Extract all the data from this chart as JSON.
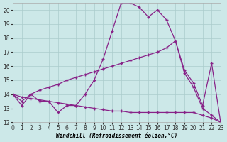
{
  "background_color": "#cce8e8",
  "grid_color": "#aacccc",
  "line_color": "#882288",
  "xlabel": "Windchill (Refroidissement éolien,°C)",
  "xlim": [
    0,
    23
  ],
  "ylim": [
    12,
    20.5
  ],
  "yticks": [
    12,
    13,
    14,
    15,
    16,
    17,
    18,
    19,
    20
  ],
  "xticks": [
    0,
    1,
    2,
    3,
    4,
    5,
    6,
    7,
    8,
    9,
    10,
    11,
    12,
    13,
    14,
    15,
    16,
    17,
    18,
    19,
    20,
    21,
    22,
    23
  ],
  "line1_x": [
    0,
    1,
    2,
    3,
    4,
    5,
    6,
    7,
    8,
    9,
    10,
    11,
    12,
    13,
    14,
    15,
    16,
    17,
    18,
    19,
    20,
    21,
    22,
    23
  ],
  "line1_y": [
    14.0,
    13.2,
    14.0,
    13.5,
    13.5,
    12.7,
    13.2,
    13.2,
    14.0,
    15.0,
    16.5,
    18.5,
    20.5,
    20.5,
    20.2,
    19.5,
    20.0,
    19.3,
    17.8,
    15.7,
    14.8,
    13.2,
    16.2,
    12.0
  ],
  "line2_x": [
    0,
    1,
    2,
    3,
    4,
    5,
    6,
    7,
    8,
    9,
    10,
    11,
    12,
    13,
    14,
    15,
    16,
    17,
    18,
    19,
    20,
    21,
    22,
    23
  ],
  "line2_y": [
    14.0,
    13.5,
    14.0,
    14.3,
    14.5,
    14.7,
    15.0,
    15.2,
    15.4,
    15.6,
    15.8,
    16.0,
    16.2,
    16.4,
    16.6,
    16.8,
    17.0,
    17.3,
    17.8,
    15.5,
    14.5,
    13.0,
    12.5,
    12.0
  ],
  "line3_x": [
    0,
    1,
    2,
    3,
    4,
    5,
    6,
    7,
    8,
    9,
    10,
    11,
    12,
    13,
    14,
    15,
    16,
    17,
    18,
    19,
    20,
    21,
    22,
    23
  ],
  "line3_y": [
    14.0,
    13.8,
    13.7,
    13.6,
    13.5,
    13.4,
    13.3,
    13.2,
    13.1,
    13.0,
    12.9,
    12.8,
    12.8,
    12.7,
    12.7,
    12.7,
    12.7,
    12.7,
    12.7,
    12.7,
    12.7,
    12.5,
    12.3,
    12.0
  ]
}
